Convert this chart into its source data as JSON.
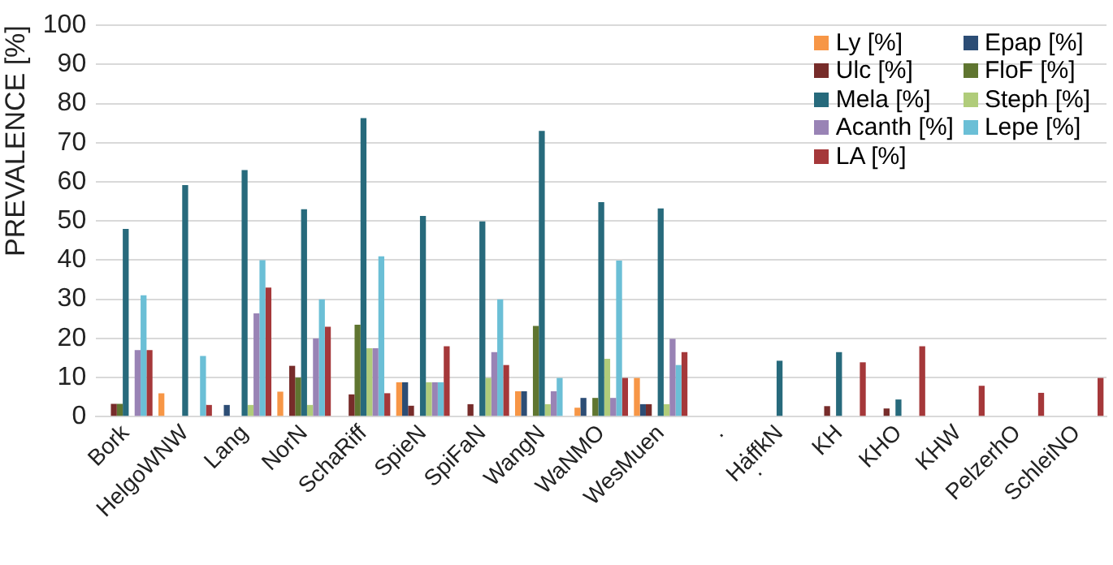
{
  "chart_data": {
    "type": "bar",
    "ylabel": "PREVALENCE [%]",
    "categories": [
      "Bork",
      "HelgoWNW",
      "Lang",
      "NorN",
      "SchaRiff",
      "SpieN",
      "SpiFaN",
      "WangN",
      "WaNMO",
      "WesMuen",
      ".\n.\n.",
      "HaffkN",
      "KH",
      "KHO",
      "KHW",
      "PelzerhO",
      "SchleiNO"
    ],
    "series": [
      {
        "name": "Ly [%]",
        "color": "#f79646",
        "values": [
          0,
          6,
          0,
          6.4,
          0,
          8.8,
          0,
          6.5,
          2.3,
          9.9,
          0,
          0,
          0,
          0,
          0,
          0,
          0
        ]
      },
      {
        "name": "Epap [%]",
        "color": "#2c4d75",
        "values": [
          0,
          0,
          3,
          0,
          0,
          8.8,
          0,
          6.5,
          4.8,
          3.2,
          0,
          0,
          0,
          0,
          0,
          0,
          0
        ]
      },
      {
        "name": "Ulc [%]",
        "color": "#772c2a",
        "values": [
          3.3,
          0,
          0,
          13,
          5.7,
          2.8,
          3.2,
          0,
          0,
          3.2,
          0,
          0,
          2.7,
          2.1,
          0,
          0,
          0
        ]
      },
      {
        "name": "FloF [%]",
        "color": "#5f7530",
        "values": [
          3.3,
          0,
          0,
          10,
          23.5,
          0,
          0,
          23.2,
          4.8,
          0,
          0,
          0,
          0,
          0,
          0,
          0,
          0
        ]
      },
      {
        "name": "Mela [%]",
        "color": "#276a7c",
        "values": [
          48,
          59.2,
          63,
          53,
          76.3,
          51.3,
          49.9,
          73,
          54.8,
          53.2,
          0,
          14.3,
          16.5,
          4.4,
          0,
          0,
          0
        ]
      },
      {
        "name": "Steph [%]",
        "color": "#b0cc7a",
        "values": [
          0,
          0,
          3,
          3,
          17.5,
          8.8,
          9.9,
          3.2,
          14.8,
          3.2,
          0,
          0,
          0,
          0,
          0,
          0,
          0
        ]
      },
      {
        "name": "Acanth [%]",
        "color": "#9983b5",
        "values": [
          17,
          0,
          26.4,
          20,
          17.5,
          8.8,
          16.5,
          6.5,
          4.8,
          19.9,
          0,
          0,
          0,
          0,
          0,
          0,
          0
        ]
      },
      {
        "name": "Lepe [%]",
        "color": "#6bbfd6",
        "values": [
          31,
          15.5,
          40,
          30,
          41,
          8.8,
          30,
          9.9,
          39.9,
          13.2,
          0,
          0,
          0,
          0,
          0,
          0,
          0
        ]
      },
      {
        "name": "LA [%]",
        "color": "#a5383a",
        "values": [
          17,
          3,
          33,
          23,
          6,
          18,
          13.2,
          0,
          9.9,
          16.5,
          0,
          0,
          13.9,
          18,
          7.9,
          6.1,
          9.9
        ]
      }
    ],
    "ylim": [
      0,
      100
    ],
    "yticks": [
      0,
      10,
      20,
      30,
      40,
      50,
      60,
      70,
      80,
      90,
      100
    ],
    "grid": "y",
    "legend": "top right"
  }
}
